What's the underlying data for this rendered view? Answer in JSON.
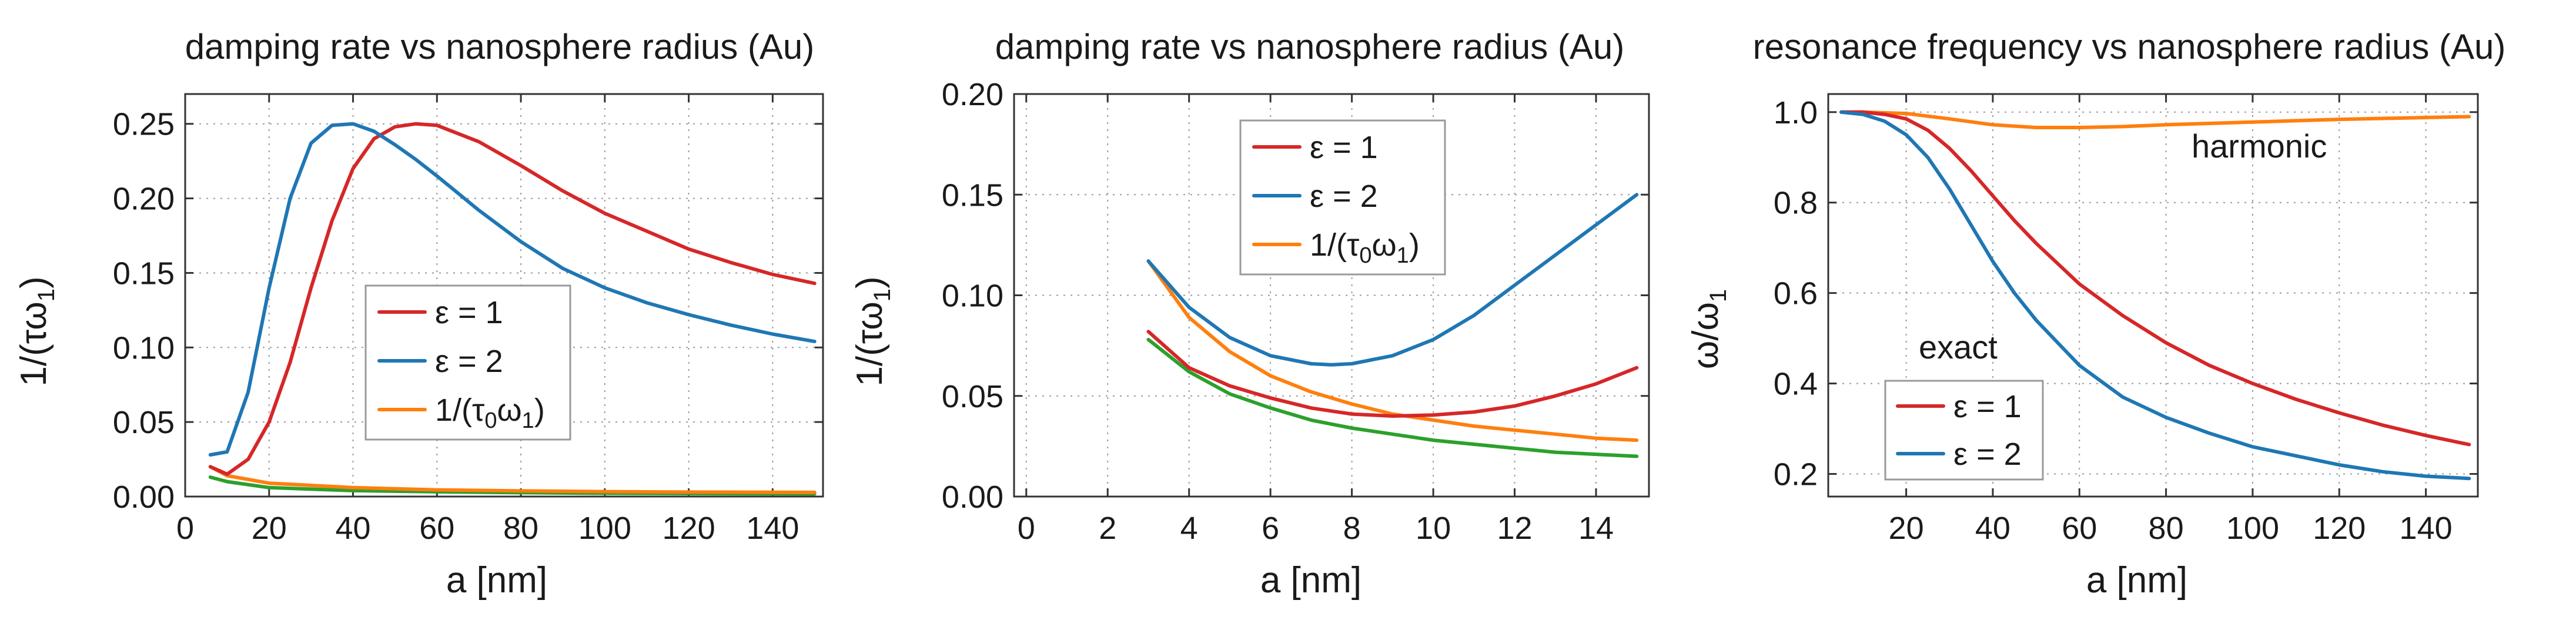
{
  "figure": {
    "colors": {
      "eps1": "#d62728",
      "eps2": "#1f77b4",
      "tau0": "#ff7f0e",
      "green": "#2ca02c"
    }
  },
  "chart_data": [
    {
      "type": "line",
      "title": "damping rate vs nanosphere radius (Au)",
      "xlabel": "a [nm]",
      "ylabel": "1/(τω",
      "ylabel_sub": "1",
      "ylabel_end": ")",
      "xlim": [
        0,
        152
      ],
      "ylim": [
        0,
        0.27
      ],
      "xticks": [
        0,
        20,
        40,
        60,
        80,
        100,
        120,
        140
      ],
      "xtick_labels": [
        "0",
        "20",
        "40",
        "60",
        "80",
        "100",
        "120",
        "140"
      ],
      "yticks": [
        0,
        0.05,
        0.1,
        0.15,
        0.2,
        0.25
      ],
      "ytick_labels": [
        "0.00",
        "0.05",
        "0.10",
        "0.15",
        "0.20",
        "0.25"
      ],
      "legend": {
        "position": "center",
        "entries": [
          "ε = 1",
          "ε = 2",
          "1/(τ",
          ")"
        ],
        "entry3_sub": "0",
        "entry3_mid": "ω",
        "entry3_sub2": "1"
      },
      "series": [
        {
          "name": "ε = 1",
          "color": "#d62728",
          "x": [
            6,
            10,
            15,
            20,
            25,
            30,
            35,
            40,
            45,
            50,
            55,
            60,
            70,
            80,
            90,
            100,
            110,
            120,
            130,
            140,
            150
          ],
          "y": [
            0.02,
            0.015,
            0.025,
            0.05,
            0.09,
            0.14,
            0.185,
            0.22,
            0.24,
            0.248,
            0.25,
            0.249,
            0.238,
            0.222,
            0.205,
            0.19,
            0.178,
            0.166,
            0.157,
            0.149,
            0.143
          ]
        },
        {
          "name": "ε = 2",
          "color": "#1f77b4",
          "x": [
            6,
            10,
            15,
            20,
            25,
            30,
            35,
            40,
            45,
            50,
            55,
            60,
            70,
            80,
            90,
            100,
            110,
            120,
            130,
            140,
            150
          ],
          "y": [
            0.028,
            0.03,
            0.07,
            0.14,
            0.2,
            0.237,
            0.249,
            0.25,
            0.245,
            0.236,
            0.226,
            0.215,
            0.192,
            0.171,
            0.153,
            0.14,
            0.13,
            0.122,
            0.115,
            0.109,
            0.104
          ]
        },
        {
          "name": "1/(τ0ω1)",
          "color": "#ff7f0e",
          "x": [
            6,
            10,
            20,
            40,
            60,
            80,
            100,
            120,
            150
          ],
          "y": [
            0.02,
            0.014,
            0.009,
            0.006,
            0.0045,
            0.0038,
            0.0033,
            0.003,
            0.0028
          ]
        },
        {
          "name": "green",
          "color": "#2ca02c",
          "x": [
            6,
            10,
            20,
            40,
            60,
            80,
            100,
            120,
            150
          ],
          "y": [
            0.013,
            0.01,
            0.006,
            0.004,
            0.0032,
            0.0026,
            0.0022,
            0.002,
            0.0018
          ]
        }
      ]
    },
    {
      "type": "line",
      "title": "damping rate vs nanosphere radius (Au)",
      "xlabel": "a [nm]",
      "ylabel": "1/(τω",
      "ylabel_sub": "1",
      "ylabel_end": ")",
      "xlim": [
        -0.3,
        15.3
      ],
      "ylim": [
        0,
        0.2
      ],
      "xticks": [
        0,
        2,
        4,
        6,
        8,
        10,
        12,
        14
      ],
      "xtick_labels": [
        "0",
        "2",
        "4",
        "6",
        "8",
        "10",
        "12",
        "14"
      ],
      "yticks": [
        0,
        0.05,
        0.1,
        0.15,
        0.2
      ],
      "ytick_labels": [
        "0.00",
        "0.05",
        "0.10",
        "0.15",
        "0.20"
      ],
      "legend": {
        "position": "top-center",
        "entries": [
          "ε = 1",
          "ε = 2",
          "1/(τ",
          ")"
        ],
        "entry3_sub": "0",
        "entry3_mid": "ω",
        "entry3_sub2": "1"
      },
      "series": [
        {
          "name": "ε = 1",
          "color": "#d62728",
          "x": [
            3,
            4,
            5,
            6,
            7,
            8,
            9,
            10,
            11,
            12,
            13,
            14,
            15
          ],
          "y": [
            0.082,
            0.064,
            0.055,
            0.049,
            0.044,
            0.041,
            0.04,
            0.0405,
            0.042,
            0.045,
            0.05,
            0.056,
            0.064
          ]
        },
        {
          "name": "ε = 2",
          "color": "#1f77b4",
          "x": [
            3,
            4,
            5,
            6,
            7,
            7.5,
            8,
            9,
            10,
            11,
            12,
            13,
            14,
            15
          ],
          "y": [
            0.117,
            0.094,
            0.079,
            0.07,
            0.066,
            0.0655,
            0.066,
            0.07,
            0.078,
            0.09,
            0.105,
            0.12,
            0.135,
            0.15
          ]
        },
        {
          "name": "1/(τ0ω1)",
          "color": "#ff7f0e",
          "x": [
            3,
            4,
            5,
            6,
            7,
            8,
            9,
            10,
            11,
            12,
            13,
            14,
            15
          ],
          "y": [
            0.117,
            0.089,
            0.072,
            0.06,
            0.052,
            0.046,
            0.041,
            0.038,
            0.035,
            0.033,
            0.031,
            0.029,
            0.028
          ]
        },
        {
          "name": "green",
          "color": "#2ca02c",
          "x": [
            3,
            4,
            5,
            6,
            7,
            8,
            9,
            10,
            11,
            12,
            13,
            14,
            15
          ],
          "y": [
            0.078,
            0.062,
            0.051,
            0.044,
            0.038,
            0.034,
            0.031,
            0.028,
            0.026,
            0.024,
            0.022,
            0.021,
            0.02
          ]
        }
      ]
    },
    {
      "type": "line",
      "title": "resonance frequency vs nanosphere radius (Au)",
      "xlabel": "a [nm]",
      "ylabel": "ω/ω",
      "ylabel_sub": "1",
      "ylabel_end": "",
      "xlim": [
        2,
        152
      ],
      "ylim": [
        0.15,
        1.04
      ],
      "xticks": [
        20,
        40,
        60,
        80,
        100,
        120,
        140
      ],
      "xtick_labels": [
        "20",
        "40",
        "60",
        "80",
        "100",
        "120",
        "140"
      ],
      "yticks": [
        0.2,
        0.4,
        0.6,
        0.8,
        1.0
      ],
      "ytick_labels": [
        "0.2",
        "0.4",
        "0.6",
        "0.8",
        "1.0"
      ],
      "legend": {
        "position": "bottom-left",
        "entries": [
          "ε = 1",
          "ε = 2"
        ]
      },
      "annotations": [
        "harmonic",
        "exact"
      ],
      "series": [
        {
          "name": "ε = 1",
          "color": "#d62728",
          "x": [
            5,
            10,
            15,
            20,
            25,
            30,
            35,
            40,
            45,
            50,
            60,
            70,
            80,
            90,
            100,
            110,
            120,
            130,
            140,
            150
          ],
          "y": [
            1.0,
            1.0,
            0.995,
            0.985,
            0.96,
            0.92,
            0.87,
            0.815,
            0.76,
            0.71,
            0.62,
            0.55,
            0.49,
            0.44,
            0.4,
            0.365,
            0.335,
            0.308,
            0.285,
            0.265
          ]
        },
        {
          "name": "ε = 2",
          "color": "#1f77b4",
          "x": [
            5,
            10,
            15,
            20,
            25,
            30,
            35,
            40,
            45,
            50,
            60,
            70,
            80,
            90,
            100,
            110,
            120,
            130,
            140,
            150
          ],
          "y": [
            1.0,
            0.995,
            0.98,
            0.95,
            0.9,
            0.83,
            0.75,
            0.67,
            0.6,
            0.54,
            0.44,
            0.37,
            0.325,
            0.29,
            0.26,
            0.24,
            0.22,
            0.205,
            0.195,
            0.19
          ]
        },
        {
          "name": "harmonic",
          "color": "#ff7f0e",
          "x": [
            5,
            10,
            20,
            30,
            40,
            50,
            60,
            70,
            80,
            100,
            120,
            140,
            150
          ],
          "y": [
            1.0,
            1.0,
            0.997,
            0.985,
            0.972,
            0.966,
            0.966,
            0.968,
            0.972,
            0.978,
            0.984,
            0.988,
            0.99
          ]
        }
      ]
    }
  ]
}
